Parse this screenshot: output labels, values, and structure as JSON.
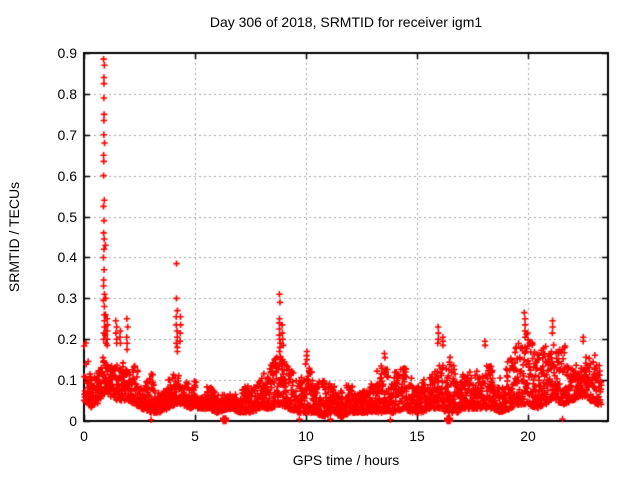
{
  "page": {
    "background": "#ffffff",
    "text_color": "#000000"
  },
  "chart_data": {
    "type": "scatter",
    "title": "Day 306 of 2018, SRMTID for receiver igm1",
    "xlabel": "GPS time / hours",
    "ylabel": "SRMTID / TECUs",
    "xlim": [
      0,
      23.6
    ],
    "ylim": [
      0,
      0.9
    ],
    "x_ticks": [
      {
        "value": 0,
        "label": "0"
      },
      {
        "value": 5,
        "label": "5"
      },
      {
        "value": 10,
        "label": "10"
      },
      {
        "value": 15,
        "label": "15"
      },
      {
        "value": 20,
        "label": "20"
      }
    ],
    "y_ticks": [
      {
        "value": 0.0,
        "label": "0"
      },
      {
        "value": 0.1,
        "label": "0.1"
      },
      {
        "value": 0.2,
        "label": "0.2"
      },
      {
        "value": 0.3,
        "label": "0.3"
      },
      {
        "value": 0.4,
        "label": "0.4"
      },
      {
        "value": 0.5,
        "label": "0.5"
      },
      {
        "value": 0.6,
        "label": "0.6"
      },
      {
        "value": 0.7,
        "label": "0.7"
      },
      {
        "value": 0.8,
        "label": "0.8"
      },
      {
        "value": 0.9,
        "label": "0.9"
      }
    ],
    "grid": {
      "show": true,
      "color": "#a8a8a8",
      "dash": [
        2,
        3
      ]
    },
    "axes_color": "#000000",
    "marker": {
      "shape": "plus",
      "color": "#ff0000",
      "half_size": 3.2,
      "stroke": 1.6
    },
    "legend": null,
    "data_start_hour": 0.0,
    "data_end_hour": 23.3,
    "samples_per_hour": 124,
    "seed": 3062018,
    "band_envelope": [
      [
        0.0,
        0.05,
        0.19
      ],
      [
        0.2,
        0.04,
        0.16
      ],
      [
        0.4,
        0.03,
        0.1
      ],
      [
        0.6,
        0.04,
        0.14
      ],
      [
        0.8,
        0.06,
        0.19
      ],
      [
        1.0,
        0.07,
        0.2
      ],
      [
        1.2,
        0.06,
        0.18
      ],
      [
        1.5,
        0.05,
        0.16
      ],
      [
        1.8,
        0.05,
        0.15
      ],
      [
        2.0,
        0.05,
        0.14
      ],
      [
        2.3,
        0.04,
        0.13
      ],
      [
        2.6,
        0.03,
        0.09
      ],
      [
        3.0,
        0.02,
        0.11
      ],
      [
        3.4,
        0.02,
        0.09
      ],
      [
        3.8,
        0.03,
        0.13
      ],
      [
        4.1,
        0.04,
        0.16
      ],
      [
        4.4,
        0.04,
        0.13
      ],
      [
        4.8,
        0.03,
        0.1
      ],
      [
        5.2,
        0.03,
        0.08
      ],
      [
        5.6,
        0.03,
        0.09
      ],
      [
        6.0,
        0.02,
        0.08
      ],
      [
        6.5,
        0.03,
        0.09
      ],
      [
        7.0,
        0.02,
        0.08
      ],
      [
        7.5,
        0.02,
        0.09
      ],
      [
        8.0,
        0.03,
        0.11
      ],
      [
        8.4,
        0.03,
        0.13
      ],
      [
        8.8,
        0.04,
        0.15
      ],
      [
        9.2,
        0.03,
        0.12
      ],
      [
        9.6,
        0.02,
        0.1
      ],
      [
        10.0,
        0.02,
        0.13
      ],
      [
        10.4,
        0.02,
        0.1
      ],
      [
        10.8,
        0.01,
        0.09
      ],
      [
        11.2,
        0.02,
        0.1
      ],
      [
        11.6,
        0.01,
        0.08
      ],
      [
        12.0,
        0.02,
        0.09
      ],
      [
        12.4,
        0.02,
        0.1
      ],
      [
        12.8,
        0.02,
        0.11
      ],
      [
        13.2,
        0.02,
        0.12
      ],
      [
        13.6,
        0.02,
        0.13
      ],
      [
        14.0,
        0.02,
        0.11
      ],
      [
        14.4,
        0.03,
        0.12
      ],
      [
        14.8,
        0.02,
        0.11
      ],
      [
        15.2,
        0.02,
        0.12
      ],
      [
        15.6,
        0.03,
        0.16
      ],
      [
        16.0,
        0.03,
        0.2
      ],
      [
        16.4,
        0.02,
        0.16
      ],
      [
        16.8,
        0.02,
        0.12
      ],
      [
        17.2,
        0.03,
        0.13
      ],
      [
        17.6,
        0.03,
        0.14
      ],
      [
        18.0,
        0.03,
        0.17
      ],
      [
        18.4,
        0.03,
        0.14
      ],
      [
        18.8,
        0.02,
        0.12
      ],
      [
        19.2,
        0.03,
        0.14
      ],
      [
        19.6,
        0.04,
        0.18
      ],
      [
        20.0,
        0.04,
        0.2
      ],
      [
        20.4,
        0.03,
        0.15
      ],
      [
        20.8,
        0.04,
        0.17
      ],
      [
        21.2,
        0.05,
        0.2
      ],
      [
        21.6,
        0.04,
        0.17
      ],
      [
        22.0,
        0.05,
        0.18
      ],
      [
        22.4,
        0.06,
        0.19
      ],
      [
        22.8,
        0.05,
        0.17
      ],
      [
        23.1,
        0.04,
        0.16
      ],
      [
        23.3,
        0.04,
        0.14
      ]
    ],
    "spike_columns": [
      {
        "t": 0.9,
        "values": [
          0.885,
          0.87,
          0.84,
          0.825,
          0.79,
          0.75,
          0.735,
          0.7,
          0.68,
          0.65,
          0.635,
          0.6,
          0.54,
          0.525,
          0.49,
          0.46,
          0.445,
          0.42,
          0.4,
          0.37,
          0.345,
          0.33,
          0.31,
          0.295,
          0.28,
          0.26,
          0.245,
          0.23,
          0.215,
          0.2
        ]
      },
      {
        "t": 0.97,
        "values": [
          0.43,
          0.3,
          0.26,
          0.23,
          0.21,
          0.19
        ]
      },
      {
        "t": 1.05,
        "values": [
          0.25,
          0.235,
          0.22,
          0.2,
          0.185
        ]
      },
      {
        "t": 1.45,
        "values": [
          0.245,
          0.23,
          0.215,
          0.2,
          0.19
        ]
      },
      {
        "t": 1.62,
        "values": [
          0.22,
          0.205,
          0.19
        ]
      },
      {
        "t": 1.95,
        "values": [
          0.25,
          0.23,
          0.205,
          0.19,
          0.175
        ]
      },
      {
        "t": 4.18,
        "values": [
          0.385,
          0.3,
          0.27,
          0.255,
          0.235,
          0.22,
          0.205,
          0.19,
          0.18,
          0.17
        ]
      },
      {
        "t": 4.35,
        "values": [
          0.255,
          0.235,
          0.215,
          0.195
        ]
      },
      {
        "t": 8.82,
        "values": [
          0.31,
          0.29,
          0.25,
          0.24,
          0.225,
          0.21,
          0.2,
          0.19,
          0.18,
          0.17
        ]
      },
      {
        "t": 8.95,
        "values": [
          0.235,
          0.215,
          0.2,
          0.185
        ]
      },
      {
        "t": 10.05,
        "values": [
          0.17,
          0.16,
          0.15
        ]
      },
      {
        "t": 13.55,
        "values": [
          0.165,
          0.155
        ]
      },
      {
        "t": 15.95,
        "values": [
          0.23,
          0.215,
          0.2,
          0.19
        ]
      },
      {
        "t": 16.15,
        "values": [
          0.205,
          0.195,
          0.185
        ]
      },
      {
        "t": 18.05,
        "values": [
          0.195,
          0.185
        ]
      },
      {
        "t": 19.85,
        "values": [
          0.265,
          0.25,
          0.235,
          0.22,
          0.205
        ]
      },
      {
        "t": 21.1,
        "values": [
          0.245,
          0.23,
          0.215
        ]
      },
      {
        "t": 22.5,
        "values": [
          0.205,
          0.195
        ]
      }
    ],
    "axis_points": [
      {
        "t": 3.02,
        "y": 0.003,
        "bold": false
      },
      {
        "t": 6.33,
        "y": 0.003,
        "bold": true
      },
      {
        "t": 9.7,
        "y": 0.004,
        "bold": false
      },
      {
        "t": 11.1,
        "y": 0.004,
        "bold": false
      },
      {
        "t": 13.8,
        "y": 0.003,
        "bold": false
      },
      {
        "t": 16.42,
        "y": 0.003,
        "bold": true
      },
      {
        "t": 21.55,
        "y": 0.005,
        "bold": false
      }
    ]
  }
}
